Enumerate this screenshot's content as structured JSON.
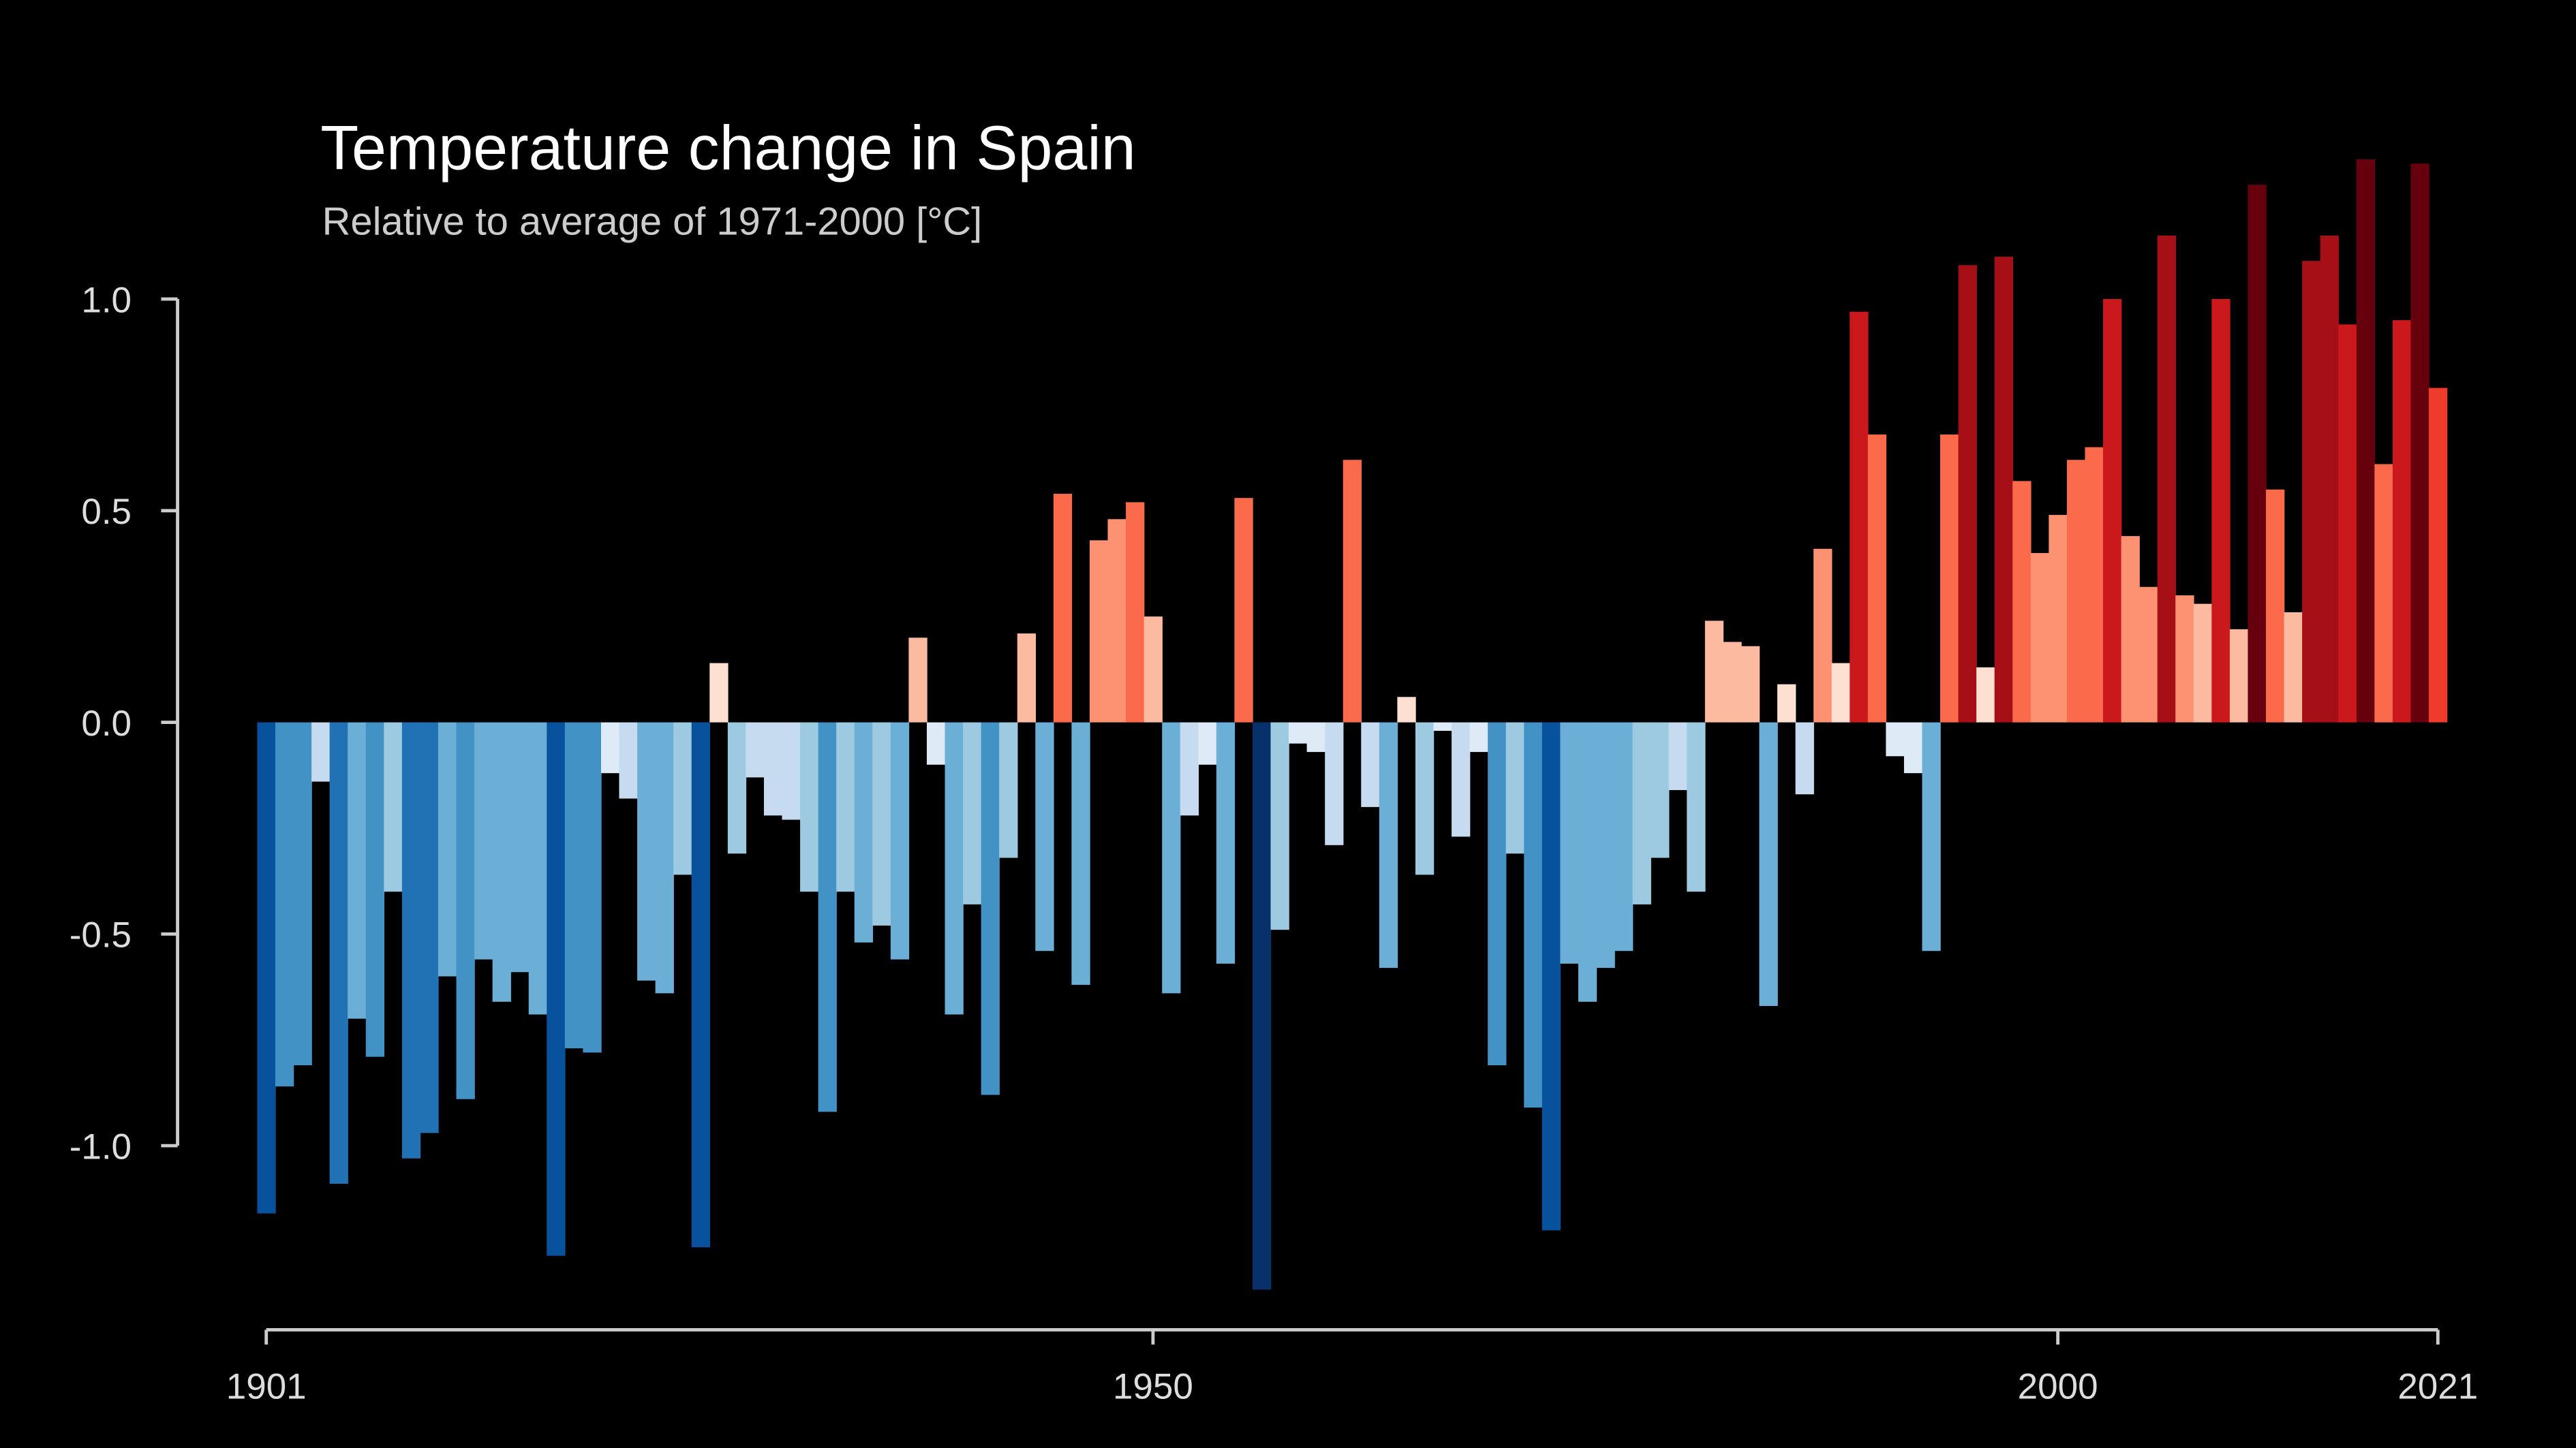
{
  "chart_data": {
    "type": "bar",
    "title": "Temperature change in Spain",
    "subtitle": "Relative to average of 1971-2000  [°C]",
    "x": [
      1901,
      1902,
      1903,
      1904,
      1905,
      1906,
      1907,
      1908,
      1909,
      1910,
      1911,
      1912,
      1913,
      1914,
      1915,
      1916,
      1917,
      1918,
      1919,
      1920,
      1921,
      1922,
      1923,
      1924,
      1925,
      1926,
      1927,
      1928,
      1929,
      1930,
      1931,
      1932,
      1933,
      1934,
      1935,
      1936,
      1937,
      1938,
      1939,
      1940,
      1941,
      1942,
      1943,
      1944,
      1945,
      1946,
      1947,
      1948,
      1949,
      1950,
      1951,
      1952,
      1953,
      1954,
      1955,
      1956,
      1957,
      1958,
      1959,
      1960,
      1961,
      1962,
      1963,
      1964,
      1965,
      1966,
      1967,
      1968,
      1969,
      1970,
      1971,
      1972,
      1973,
      1974,
      1975,
      1976,
      1977,
      1978,
      1979,
      1980,
      1981,
      1982,
      1983,
      1984,
      1985,
      1986,
      1987,
      1988,
      1989,
      1990,
      1991,
      1992,
      1993,
      1994,
      1995,
      1996,
      1997,
      1998,
      1999,
      2000,
      2001,
      2002,
      2003,
      2004,
      2005,
      2006,
      2007,
      2008,
      2009,
      2010,
      2011,
      2012,
      2013,
      2014,
      2015,
      2016,
      2017,
      2018,
      2019,
      2020,
      2021
    ],
    "values": [
      -1.16,
      -0.86,
      -0.81,
      -0.14,
      -1.09,
      -0.7,
      -0.79,
      -0.4,
      -1.03,
      -0.97,
      -0.6,
      -0.89,
      -0.56,
      -0.66,
      -0.59,
      -0.69,
      -1.26,
      -0.77,
      -0.78,
      -0.12,
      -0.18,
      -0.61,
      -0.64,
      -0.36,
      -1.24,
      0.14,
      -0.31,
      -0.13,
      -0.22,
      -0.23,
      -0.4,
      -0.92,
      -0.4,
      -0.52,
      -0.48,
      -0.56,
      0.2,
      -0.1,
      -0.69,
      -0.43,
      -0.88,
      -0.32,
      0.21,
      -0.54,
      0.54,
      -0.62,
      0.43,
      0.48,
      0.52,
      0.25,
      -0.64,
      -0.22,
      -0.1,
      -0.57,
      0.53,
      -1.34,
      -0.49,
      -0.05,
      -0.07,
      -0.29,
      0.62,
      -0.2,
      -0.58,
      0.06,
      -0.36,
      -0.02,
      -0.27,
      -0.07,
      -0.81,
      -0.31,
      -0.91,
      -1.2,
      -0.57,
      -0.66,
      -0.58,
      -0.54,
      -0.43,
      -0.32,
      -0.16,
      -0.4,
      0.24,
      0.19,
      0.18,
      -0.67,
      0.09,
      -0.17,
      0.41,
      0.14,
      0.97,
      0.68,
      -0.08,
      -0.12,
      -0.54,
      0.68,
      1.08,
      0.13,
      1.1,
      0.57,
      0.4,
      0.49,
      0.62,
      0.65,
      1.0,
      0.44,
      0.32,
      1.15,
      0.3,
      0.28,
      1.0,
      0.22,
      1.27,
      0.55,
      0.26,
      1.09,
      1.15,
      0.94,
      1.33,
      0.61,
      0.95,
      1.32,
      0.79
    ],
    "xlim": [
      1901,
      2021
    ],
    "xticks": [
      1901,
      1950,
      2000,
      2021
    ],
    "ylim": [
      -1.4,
      1.4
    ],
    "yticks": [
      {
        "value": -1.0,
        "label": "-1.0"
      },
      -0.5,
      {
        "value": 0.0,
        "label": "0.0"
      },
      0.5,
      {
        "value": 1.0,
        "label": "1.0"
      }
    ]
  }
}
